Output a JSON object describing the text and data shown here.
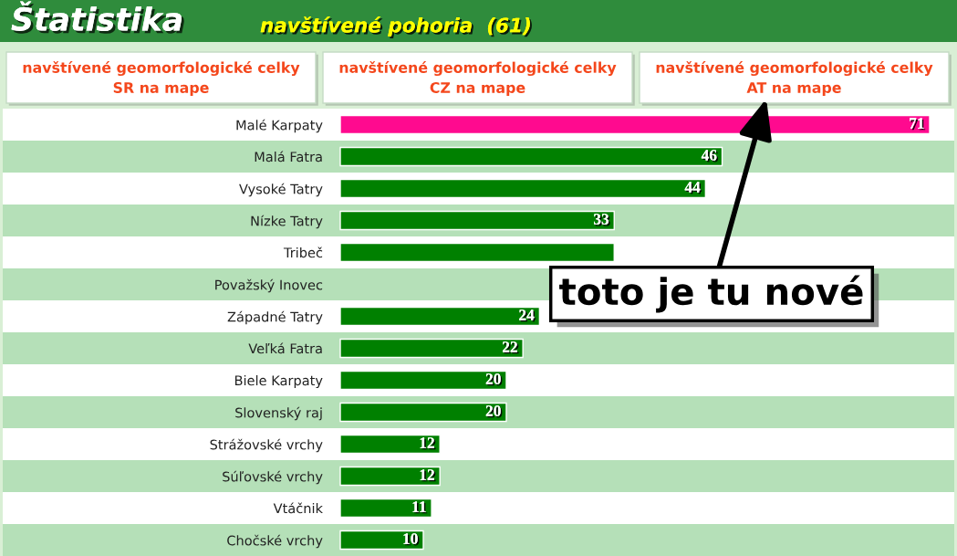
{
  "chart_data": {
    "type": "bar",
    "orientation": "horizontal",
    "title": "Štatistika",
    "subtitle": "navštívené pohoria  (61)",
    "categories": [
      "Malé Karpaty",
      "Malá Fatra",
      "Vysoké Tatry",
      "Nízke Tatry",
      "Tribeč",
      "Považský Inovec",
      "Západné Tatry",
      "Veľká Fatra",
      "Biele Karpaty",
      "Slovenský raj",
      "Strážovské vrchy",
      "Súľovské vrchy",
      "Vtáčnik",
      "Chočské vrchy"
    ],
    "values": [
      71,
      46,
      44,
      33,
      33,
      null,
      24,
      22,
      20,
      20,
      12,
      12,
      11,
      10
    ],
    "colors": [
      "#ff0a8f",
      "#008000",
      "#008000",
      "#008000",
      "#008000",
      "#008000",
      "#008000",
      "#008000",
      "#008000",
      "#008000",
      "#008000",
      "#008000",
      "#008000",
      "#008000"
    ],
    "value_labels": [
      "71",
      "46",
      "44",
      "33",
      null,
      null,
      "24",
      "22",
      "20",
      "20",
      "12",
      "12",
      "11",
      "10"
    ],
    "tick_labels": "y",
    "annotations": [
      "navštívené geomorfologické celky\nSR na mape",
      "navštívené geomorfologické celky\nCZ na mape",
      "navštívené geomorfologické celky\nAT na mape",
      "toto je tu nové"
    ]
  }
}
